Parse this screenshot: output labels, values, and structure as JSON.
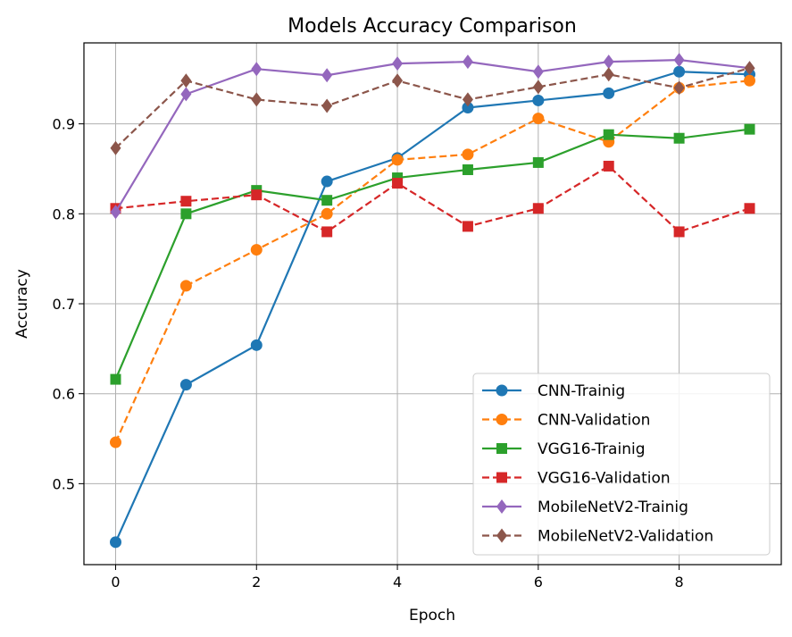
{
  "chart_data": {
    "type": "line",
    "title": "Models Accuracy Comparison",
    "xlabel": "Epoch",
    "ylabel": "Accuracy",
    "xlim": [
      -0.45,
      9.45
    ],
    "ylim": [
      0.41,
      0.99
    ],
    "xticks": [
      0,
      2,
      4,
      6,
      8
    ],
    "yticks": [
      0.5,
      0.6,
      0.7,
      0.8,
      0.9
    ],
    "xtick_labels": [
      "0",
      "2",
      "4",
      "6",
      "8"
    ],
    "ytick_labels": [
      "0.5",
      "0.6",
      "0.7",
      "0.8",
      "0.9"
    ],
    "grid": true,
    "legend_position": "lower-right",
    "x": [
      0,
      1,
      2,
      3,
      4,
      5,
      6,
      7,
      8,
      9
    ],
    "series": [
      {
        "name": "CNN-Trainig",
        "color": "#1f77b4",
        "linestyle": "solid",
        "marker": "circle",
        "values": [
          0.435,
          0.61,
          0.654,
          0.836,
          0.862,
          0.918,
          0.926,
          0.934,
          0.958,
          0.955
        ]
      },
      {
        "name": "CNN-Validation",
        "color": "#ff7f0e",
        "linestyle": "dashed",
        "marker": "circle",
        "values": [
          0.546,
          0.72,
          0.76,
          0.8,
          0.86,
          0.866,
          0.906,
          0.88,
          0.94,
          0.948
        ]
      },
      {
        "name": "VGG16-Trainig",
        "color": "#2ca02c",
        "linestyle": "solid",
        "marker": "square",
        "values": [
          0.616,
          0.8,
          0.826,
          0.815,
          0.84,
          0.849,
          0.857,
          0.888,
          0.884,
          0.894
        ]
      },
      {
        "name": "VGG16-Validation",
        "color": "#d62728",
        "linestyle": "dashed",
        "marker": "square",
        "values": [
          0.806,
          0.814,
          0.821,
          0.78,
          0.834,
          0.786,
          0.806,
          0.853,
          0.78,
          0.806
        ]
      },
      {
        "name": "MobileNetV2-Trainig",
        "color": "#9467bd",
        "linestyle": "solid",
        "marker": "diamond",
        "values": [
          0.802,
          0.933,
          0.961,
          0.954,
          0.967,
          0.969,
          0.958,
          0.969,
          0.971,
          0.962
        ]
      },
      {
        "name": "MobileNetV2-Validation",
        "color": "#8c564b",
        "linestyle": "dashed",
        "marker": "diamond",
        "values": [
          0.873,
          0.948,
          0.927,
          0.92,
          0.948,
          0.927,
          0.941,
          0.955,
          0.94,
          0.962
        ]
      }
    ]
  }
}
